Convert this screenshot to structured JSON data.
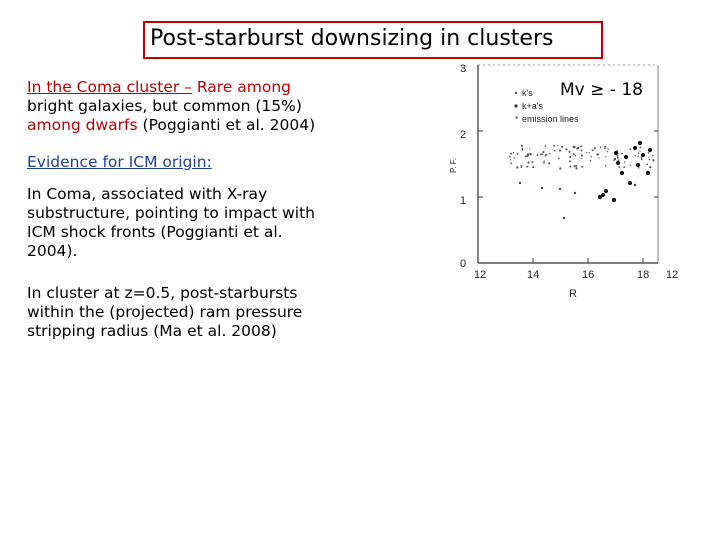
{
  "slide": {
    "title": "Post-starburst downsizing in clusters",
    "coma": {
      "underlined": "In the Coma cluster –",
      "rest_line1": " Rare among",
      "line2": "bright galaxies, but common (15%)",
      "line3_red": "among dwarfs",
      "line3_black": " (Poggianti et al. 2004)"
    },
    "evidence_heading": "Evidence for ICM origin:",
    "para_coma_lines": [
      "In Coma, associated with X-ray",
      "substructure, pointing to impact with",
      "ICM shock fronts (Poggianti et al.",
      "2004)."
    ],
    "para_z_lines": [
      "In cluster at z=0.5, post-starbursts",
      "within the (projected) ram pressure",
      "stripping radius (Ma et al. 2008)"
    ]
  },
  "figure": {
    "magnitude_label": "Mv ≥ - 18",
    "legend": [
      "k's",
      "k+a's",
      "emission lines"
    ],
    "y_ticks": [
      "3",
      "2",
      "1",
      "0"
    ],
    "x_ticks": [
      "12",
      "14",
      "16",
      "18",
      "12"
    ],
    "x_label": "R",
    "y_label": "P. F."
  }
}
